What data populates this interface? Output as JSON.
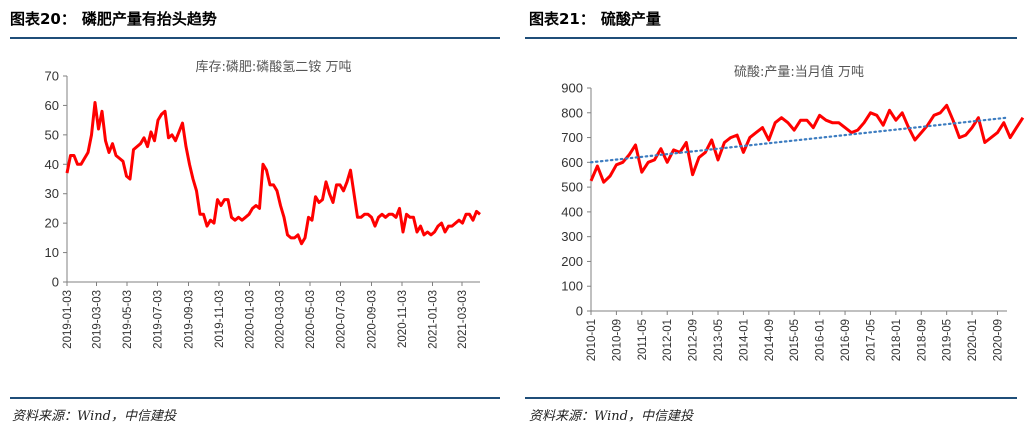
{
  "left": {
    "figure_number": "图表20：",
    "figure_title": "磷肥产量有抬头趋势",
    "source": "资料来源：Wind，中信建投"
  },
  "right": {
    "figure_number": "图表21：",
    "figure_title": "硫酸产量",
    "source": "资料来源：Wind，中信建投"
  },
  "colors": {
    "line": "#ff0000",
    "trend": "#3c7cc0",
    "rule": "#1f4e79"
  },
  "chart_data": [
    {
      "id": "left",
      "type": "line",
      "title": "库存:磷肥:磷酸氢二铵  万吨",
      "xlabel": "",
      "ylabel": "",
      "ylim": [
        0,
        70
      ],
      "yticks": [
        0,
        10,
        20,
        30,
        40,
        50,
        60,
        70
      ],
      "grid": false,
      "x_start": "2019-01-03",
      "x_end": "2021-04-08",
      "xticks": [
        "2019-01-03",
        "2019-03-03",
        "2019-05-03",
        "2019-07-03",
        "2019-09-03",
        "2019-11-03",
        "2020-01-03",
        "2020-03-03",
        "2020-05-03",
        "2020-07-03",
        "2020-09-03",
        "2020-11-03",
        "2021-01-03",
        "2021-03-03"
      ],
      "series": [
        {
          "name": "库存:磷肥:磷酸氢二铵",
          "x": [
            "2019-01-03",
            "2019-01-10",
            "2019-01-17",
            "2019-01-24",
            "2019-01-31",
            "2019-02-07",
            "2019-02-14",
            "2019-02-21",
            "2019-02-28",
            "2019-03-07",
            "2019-03-14",
            "2019-03-21",
            "2019-03-28",
            "2019-04-04",
            "2019-04-11",
            "2019-04-18",
            "2019-04-25",
            "2019-05-02",
            "2019-05-09",
            "2019-05-16",
            "2019-05-23",
            "2019-05-30",
            "2019-06-06",
            "2019-06-13",
            "2019-06-20",
            "2019-06-27",
            "2019-07-04",
            "2019-07-11",
            "2019-07-18",
            "2019-07-25",
            "2019-08-01",
            "2019-08-08",
            "2019-08-15",
            "2019-08-22",
            "2019-08-29",
            "2019-09-05",
            "2019-09-12",
            "2019-09-19",
            "2019-09-26",
            "2019-10-03",
            "2019-10-10",
            "2019-10-17",
            "2019-10-24",
            "2019-10-31",
            "2019-11-07",
            "2019-11-14",
            "2019-11-21",
            "2019-11-28",
            "2019-12-05",
            "2019-12-12",
            "2019-12-19",
            "2019-12-26",
            "2020-01-02",
            "2020-01-09",
            "2020-01-16",
            "2020-01-23",
            "2020-01-30",
            "2020-02-06",
            "2020-02-13",
            "2020-02-20",
            "2020-02-27",
            "2020-03-05",
            "2020-03-12",
            "2020-03-19",
            "2020-03-26",
            "2020-04-02",
            "2020-04-09",
            "2020-04-16",
            "2020-04-23",
            "2020-04-30",
            "2020-05-07",
            "2020-05-14",
            "2020-05-21",
            "2020-05-28",
            "2020-06-04",
            "2020-06-11",
            "2020-06-18",
            "2020-06-25",
            "2020-07-02",
            "2020-07-09",
            "2020-07-16",
            "2020-07-23",
            "2020-07-30",
            "2020-08-06",
            "2020-08-13",
            "2020-08-20",
            "2020-08-27",
            "2020-09-03",
            "2020-09-10",
            "2020-09-17",
            "2020-09-24",
            "2020-10-01",
            "2020-10-08",
            "2020-10-15",
            "2020-10-22",
            "2020-10-29",
            "2020-11-05",
            "2020-11-12",
            "2020-11-19",
            "2020-11-26",
            "2020-12-03",
            "2020-12-10",
            "2020-12-17",
            "2020-12-24",
            "2020-12-31",
            "2021-01-07",
            "2021-01-14",
            "2021-01-21",
            "2021-01-28",
            "2021-02-04",
            "2021-02-11",
            "2021-02-18",
            "2021-02-25",
            "2021-03-04",
            "2021-03-11",
            "2021-03-18",
            "2021-03-25",
            "2021-04-01",
            "2021-04-08"
          ],
          "values": [
            37,
            43,
            43,
            40,
            40,
            42,
            44,
            50,
            61,
            52,
            58,
            48,
            44,
            47,
            43,
            42,
            41,
            36,
            35,
            45,
            46,
            47,
            49,
            46,
            51,
            48,
            55,
            57,
            58,
            49,
            50,
            48,
            51,
            54,
            46,
            40,
            35,
            31,
            23,
            23,
            19,
            21,
            20,
            28,
            26,
            28,
            28,
            22,
            21,
            22,
            21,
            22,
            23,
            25,
            26,
            25,
            40,
            38,
            33,
            33,
            31,
            26,
            22,
            16,
            15,
            15,
            16,
            13,
            15,
            22,
            21,
            29,
            27,
            28,
            34,
            30,
            27,
            33,
            33,
            31,
            34,
            38,
            30,
            22,
            22,
            23,
            23,
            22,
            19,
            22,
            23,
            22,
            23,
            23,
            22,
            25,
            17,
            23,
            22,
            22,
            17,
            19,
            16,
            17,
            16,
            17,
            19,
            20,
            17,
            19,
            19,
            20,
            21,
            20,
            23,
            23,
            21,
            24,
            23
          ]
        }
      ]
    },
    {
      "id": "right",
      "type": "line",
      "title": "硫酸:产量:当月值  万吨",
      "xlabel": "",
      "ylabel": "",
      "ylim": [
        0,
        900
      ],
      "yticks": [
        0,
        100,
        200,
        300,
        400,
        500,
        600,
        700,
        800,
        900
      ],
      "grid": false,
      "x_start": "2010-01",
      "x_end": "2020-12",
      "xticks": [
        "2010-01",
        "2010-09",
        "2011-05",
        "2012-01",
        "2012-09",
        "2013-05",
        "2014-01",
        "2014-09",
        "2015-05",
        "2016-01",
        "2016-09",
        "2017-05",
        "2018-01",
        "2018-09",
        "2019-05",
        "2020-01",
        "2020-09"
      ],
      "series": [
        {
          "name": "硫酸:产量:当月值",
          "x_step_months": 2,
          "values": [
            525,
            585,
            520,
            545,
            590,
            600,
            630,
            670,
            560,
            600,
            610,
            655,
            600,
            650,
            640,
            680,
            550,
            620,
            640,
            690,
            610,
            680,
            700,
            710,
            640,
            700,
            720,
            740,
            690,
            760,
            780,
            760,
            730,
            770,
            770,
            740,
            790,
            770,
            760,
            760,
            740,
            720,
            730,
            760,
            800,
            790,
            750,
            810,
            770,
            800,
            740,
            690,
            720,
            750,
            790,
            800,
            830,
            770,
            700,
            710,
            740,
            780,
            680,
            700,
            720,
            760,
            700,
            740,
            780
          ]
        },
        {
          "name": "趋势线",
          "style": "dotted",
          "x": [
            "2010-01",
            "2020-12"
          ],
          "values": [
            600,
            780
          ]
        }
      ]
    }
  ]
}
